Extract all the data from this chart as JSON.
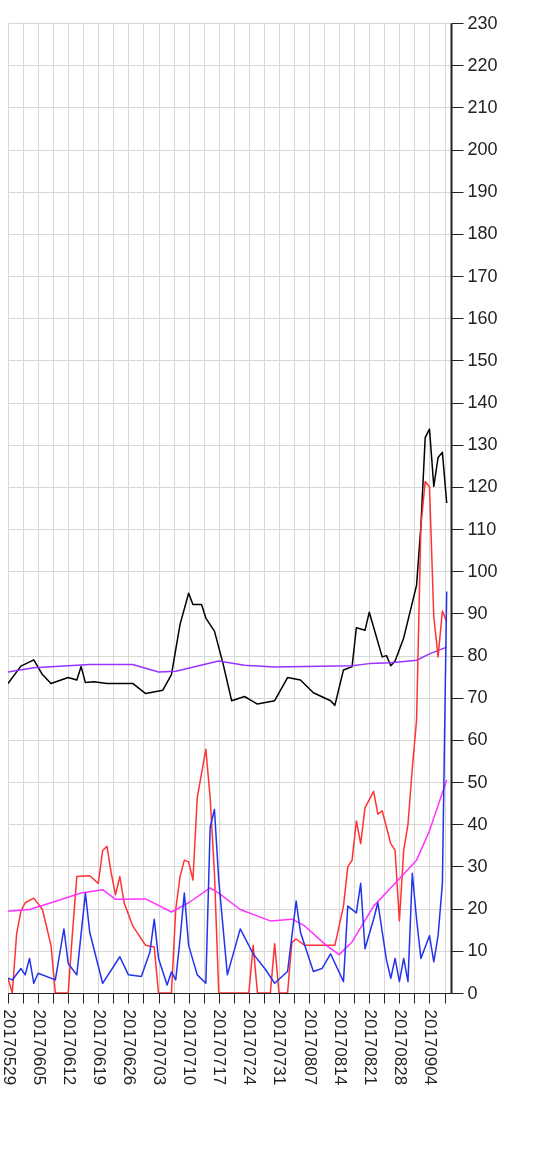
{
  "chart_data": {
    "type": "line",
    "grid": true,
    "xlim": [
      "2017-05-29",
      "2017-09-09"
    ],
    "xticks": [
      {
        "value": "2017-05-29",
        "label": "20170529"
      },
      {
        "value": "2017-06-01T12:00",
        "label": null
      },
      {
        "value": "2017-06-05",
        "label": "20170605"
      },
      {
        "value": "2017-06-08T12:00",
        "label": null
      },
      {
        "value": "2017-06-12",
        "label": "20170612"
      },
      {
        "value": "2017-06-15T12:00",
        "label": null
      },
      {
        "value": "2017-06-19",
        "label": "20170619"
      },
      {
        "value": "2017-06-22T12:00",
        "label": null
      },
      {
        "value": "2017-06-26",
        "label": "20170626"
      },
      {
        "value": "2017-06-29T12:00",
        "label": null
      },
      {
        "value": "2017-07-03",
        "label": "20170703"
      },
      {
        "value": "2017-07-06T12:00",
        "label": null
      },
      {
        "value": "2017-07-10",
        "label": "20170710"
      },
      {
        "value": "2017-07-13T12:00",
        "label": null
      },
      {
        "value": "2017-07-17",
        "label": "20170717"
      },
      {
        "value": "2017-07-20T12:00",
        "label": null
      },
      {
        "value": "2017-07-24",
        "label": "20170724"
      },
      {
        "value": "2017-07-27T12:00",
        "label": null
      },
      {
        "value": "2017-07-31",
        "label": "20170731"
      },
      {
        "value": "2017-08-03T12:00",
        "label": null
      },
      {
        "value": "2017-08-07",
        "label": "20170807"
      },
      {
        "value": "2017-08-10T12:00",
        "label": null
      },
      {
        "value": "2017-08-14",
        "label": "20170814"
      },
      {
        "value": "2017-08-17T12:00",
        "label": null
      },
      {
        "value": "2017-08-21",
        "label": "20170821"
      },
      {
        "value": "2017-08-24T12:00",
        "label": null
      },
      {
        "value": "2017-08-28",
        "label": "20170828"
      },
      {
        "value": "2017-08-31T12:00",
        "label": null
      },
      {
        "value": "2017-09-04",
        "label": "20170904"
      },
      {
        "value": "2017-09-07T12:00",
        "label": null
      }
    ],
    "ylim": [
      0,
      230
    ],
    "yticks": [
      0,
      10,
      20,
      30,
      40,
      50,
      60,
      70,
      80,
      90,
      100,
      110,
      120,
      130,
      140,
      150,
      160,
      170,
      180,
      190,
      200,
      210,
      220,
      230
    ],
    "series": [
      {
        "color": "#000000",
        "x": [
          "2017-05-29",
          "2017-06-01",
          "2017-06-04",
          "2017-06-06",
          "2017-06-08",
          "2017-06-12",
          "2017-06-14",
          "2017-06-15",
          "2017-06-16",
          "2017-06-18",
          "2017-06-21",
          "2017-06-27",
          "2017-06-30",
          "2017-07-04",
          "2017-07-06",
          "2017-07-08",
          "2017-07-10",
          "2017-07-11",
          "2017-07-13",
          "2017-07-14",
          "2017-07-16",
          "2017-07-18",
          "2017-07-20",
          "2017-07-23",
          "2017-07-26",
          "2017-07-30",
          "2017-08-02",
          "2017-08-05",
          "2017-08-08",
          "2017-08-12",
          "2017-08-13",
          "2017-08-15",
          "2017-08-17",
          "2017-08-18",
          "2017-08-20",
          "2017-08-21",
          "2017-08-24",
          "2017-08-25",
          "2017-08-26",
          "2017-08-27",
          "2017-08-29",
          "2017-09-01",
          "2017-09-02",
          "2017-09-03",
          "2017-09-04",
          "2017-09-05",
          "2017-09-06",
          "2017-09-07",
          "2017-09-08"
        ],
        "values": [
          73.4,
          77.5,
          79,
          75.5,
          73.4,
          74.8,
          74.2,
          77.4,
          73.6,
          73.8,
          73.4,
          73.4,
          71,
          71.8,
          75.5,
          87.4,
          94.8,
          92.1,
          92.1,
          88.9,
          85.8,
          78.1,
          69.3,
          70.3,
          68.5,
          69.3,
          74.8,
          74.2,
          71.2,
          69.3,
          68.2,
          76.6,
          77.4,
          86.6,
          86,
          90.3,
          79.7,
          80,
          77.6,
          78.7,
          84.2,
          96.7,
          110.7,
          131.7,
          133.7,
          120.1,
          127,
          128.2,
          116.2
        ]
      },
      {
        "color": "#9933ff",
        "x": [
          "2017-05-29",
          "2017-06-04",
          "2017-06-17",
          "2017-06-27",
          "2017-07-03",
          "2017-07-07",
          "2017-07-17",
          "2017-07-23",
          "2017-07-30",
          "2017-08-06",
          "2017-08-17",
          "2017-08-21",
          "2017-08-26",
          "2017-09-01",
          "2017-09-04",
          "2017-09-08"
        ],
        "values": [
          76.1,
          77.1,
          77.9,
          77.9,
          76.1,
          76.3,
          78.7,
          77.7,
          77.3,
          77.4,
          77.6,
          78.1,
          78.3,
          78.9,
          80.4,
          82
        ]
      },
      {
        "color": "#ff3333",
        "x": [
          "2017-05-29",
          "2017-05-30",
          "2017-05-31",
          "2017-06-01",
          "2017-06-02",
          "2017-06-04",
          "2017-06-06",
          "2017-06-08",
          "2017-06-09",
          "2017-06-12",
          "2017-06-13",
          "2017-06-14",
          "2017-06-17",
          "2017-06-19",
          "2017-06-20",
          "2017-06-21",
          "2017-06-22",
          "2017-06-23",
          "2017-06-24",
          "2017-06-25",
          "2017-06-27",
          "2017-06-30",
          "2017-07-02",
          "2017-07-03",
          "2017-07-06",
          "2017-07-07",
          "2017-07-08",
          "2017-07-09",
          "2017-07-10",
          "2017-07-11",
          "2017-07-12",
          "2017-07-14",
          "2017-07-15",
          "2017-07-16",
          "2017-07-17",
          "2017-07-24",
          "2017-07-25",
          "2017-07-26",
          "2017-07-29",
          "2017-07-30",
          "2017-07-31",
          "2017-08-02",
          "2017-08-03",
          "2017-08-04",
          "2017-08-06",
          "2017-08-13",
          "2017-08-15",
          "2017-08-16",
          "2017-08-17",
          "2017-08-18",
          "2017-08-19",
          "2017-08-20",
          "2017-08-22",
          "2017-08-23",
          "2017-08-24",
          "2017-08-26",
          "2017-08-27",
          "2017-08-28",
          "2017-08-29",
          "2017-08-30",
          "2017-08-31",
          "2017-09-01",
          "2017-09-02",
          "2017-09-03",
          "2017-09-04",
          "2017-09-05",
          "2017-09-06",
          "2017-09-07",
          "2017-09-08"
        ],
        "values": [
          3.5,
          0,
          14,
          19.4,
          21.4,
          22.5,
          19.8,
          11.3,
          0,
          0,
          14.4,
          27.6,
          27.8,
          26,
          33.8,
          34.8,
          28.4,
          23.3,
          27.6,
          21.4,
          15.9,
          11.3,
          10.9,
          0,
          0,
          19.8,
          27.6,
          31.5,
          31.1,
          26.8,
          46.3,
          57.8,
          46.3,
          28.4,
          0,
          0,
          11.3,
          0,
          0,
          11.7,
          0,
          0,
          12,
          12.8,
          11.3,
          11.3,
          20.6,
          29.9,
          31.5,
          40.8,
          35.4,
          43.9,
          47.8,
          42.4,
          43.2,
          35.4,
          33.8,
          17.1,
          33.8,
          40,
          53.3,
          64.8,
          110.7,
          121.3,
          120,
          89.2,
          79.7,
          90.6,
          88
        ]
      },
      {
        "color": "#ff33ff",
        "x": [
          "2017-05-29",
          "2017-06-03",
          "2017-06-08",
          "2017-06-15",
          "2017-06-20",
          "2017-06-23",
          "2017-06-30",
          "2017-07-06",
          "2017-07-10",
          "2017-07-15",
          "2017-07-17",
          "2017-07-22",
          "2017-07-29",
          "2017-08-03",
          "2017-08-06",
          "2017-08-11",
          "2017-08-14",
          "2017-08-17",
          "2017-08-22",
          "2017-08-27",
          "2017-09-01",
          "2017-09-04",
          "2017-09-08"
        ],
        "values": [
          19.4,
          19.8,
          21.4,
          23.7,
          24.5,
          22.2,
          22.3,
          19.2,
          21.4,
          24.9,
          23.7,
          19.8,
          17.1,
          17.5,
          15.9,
          11.3,
          9.1,
          12.1,
          20.6,
          26,
          31.5,
          38.5,
          50.5
        ]
      },
      {
        "color": "#2233ee",
        "x": [
          "2017-05-29",
          "2017-05-30",
          "2017-06-01",
          "2017-06-02",
          "2017-06-03",
          "2017-06-04",
          "2017-06-05",
          "2017-06-09",
          "2017-06-11",
          "2017-06-12",
          "2017-06-14",
          "2017-06-16",
          "2017-06-17",
          "2017-06-20",
          "2017-06-24",
          "2017-06-26",
          "2017-06-29",
          "2017-07-01",
          "2017-07-02",
          "2017-07-03",
          "2017-07-05",
          "2017-07-06",
          "2017-07-07",
          "2017-07-08",
          "2017-07-09",
          "2017-07-10",
          "2017-07-12",
          "2017-07-14",
          "2017-07-15",
          "2017-07-16",
          "2017-07-17",
          "2017-07-19",
          "2017-07-22",
          "2017-07-25",
          "2017-07-28",
          "2017-07-30",
          "2017-08-02",
          "2017-08-04",
          "2017-08-05",
          "2017-08-08",
          "2017-08-10",
          "2017-08-12",
          "2017-08-15",
          "2017-08-16",
          "2017-08-18",
          "2017-08-19",
          "2017-08-20",
          "2017-08-22",
          "2017-08-23",
          "2017-08-25",
          "2017-08-26",
          "2017-08-27",
          "2017-08-28",
          "2017-08-29",
          "2017-08-30",
          "2017-08-31",
          "2017-09-01",
          "2017-09-02",
          "2017-09-04",
          "2017-09-05",
          "2017-09-06",
          "2017-09-07",
          "2017-09-08"
        ],
        "values": [
          3.5,
          3.1,
          5.8,
          4.3,
          8.2,
          2.3,
          4.7,
          3.1,
          15.2,
          7,
          4.3,
          23.7,
          14.4,
          2.3,
          8.6,
          4.3,
          3.9,
          9.7,
          17.5,
          8.2,
          1.9,
          5,
          3.1,
          12.8,
          23.7,
          11.3,
          4.3,
          2.3,
          39.3,
          43.5,
          26.8,
          4.3,
          15.2,
          9.3,
          5.4,
          2.3,
          5.1,
          21.8,
          14.4,
          5.1,
          5.8,
          9.3,
          2.7,
          20.6,
          19,
          26,
          10.5,
          17.5,
          21.4,
          7.8,
          3.5,
          8.2,
          2.7,
          8.2,
          2.7,
          28.4,
          17.5,
          8.2,
          13.6,
          7.4,
          13.6,
          26,
          95.2
        ]
      }
    ]
  }
}
